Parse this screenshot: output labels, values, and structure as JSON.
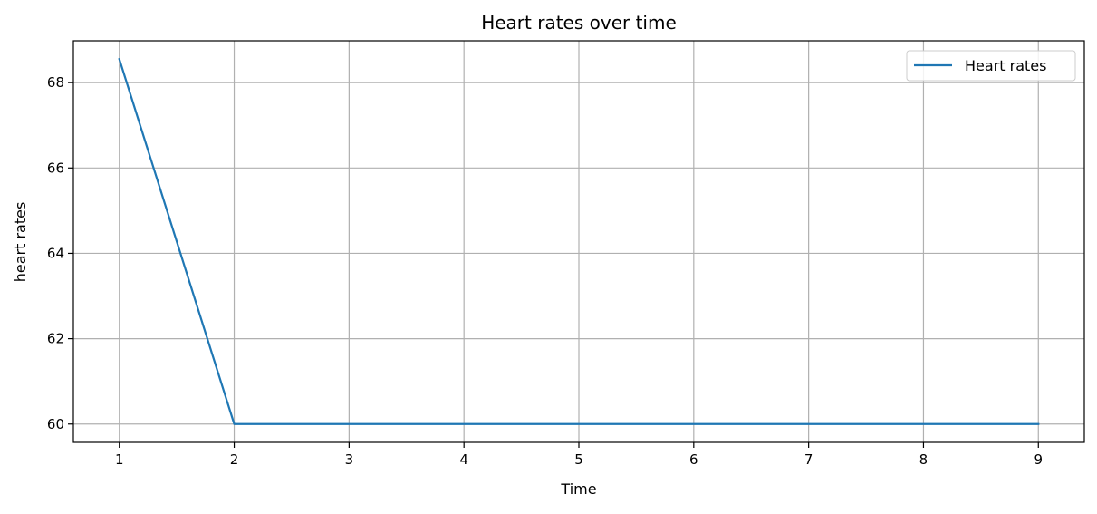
{
  "chart_data": {
    "type": "line",
    "title": "Heart rates over time",
    "xlabel": "Time",
    "ylabel": "heart rates",
    "x": [
      1,
      2,
      3,
      4,
      5,
      6,
      7,
      8,
      9
    ],
    "series": [
      {
        "name": "Heart rates",
        "values": [
          68.55,
          60,
          60,
          60,
          60,
          60,
          60,
          60,
          60
        ],
        "color": "#1f77b4"
      }
    ],
    "xlim": [
      0.6,
      9.4
    ],
    "ylim": [
      59.57,
      68.98
    ],
    "xticks": [
      1,
      2,
      3,
      4,
      5,
      6,
      7,
      8,
      9
    ],
    "yticks": [
      60,
      62,
      64,
      66,
      68
    ],
    "grid": true,
    "legend_position": "top-right"
  }
}
